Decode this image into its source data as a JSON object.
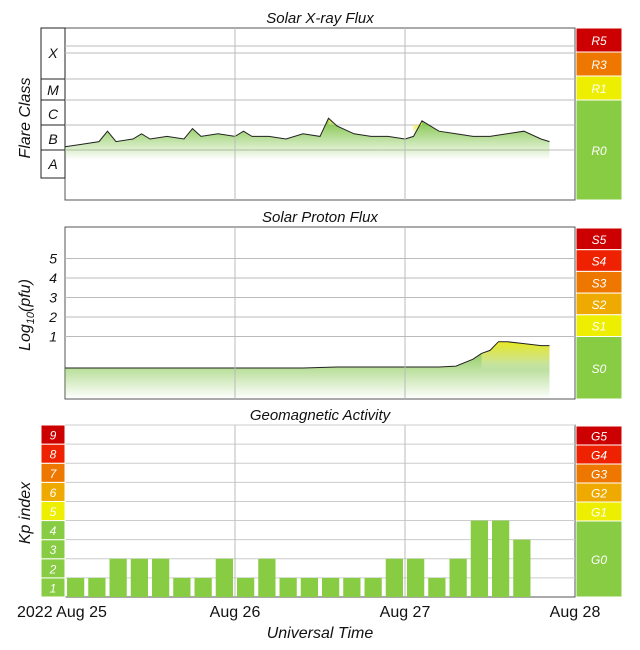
{
  "chart_data": [
    {
      "type": "area",
      "title": "Solar X-ray Flux",
      "ylabel": "Flare Class",
      "y_classes": [
        "X",
        "M",
        "C",
        "B",
        "A"
      ],
      "scale_levels": [
        "R5",
        "R3",
        "R1",
        "R0"
      ],
      "scale_colors": [
        "#cc0000",
        "#ee7700",
        "#eeee00",
        "#88cc44"
      ],
      "x_range_days": [
        0,
        3
      ],
      "series": [
        {
          "name": "X-ray",
          "x_days": [
            0.0,
            0.1,
            0.2,
            0.25,
            0.3,
            0.4,
            0.45,
            0.5,
            0.6,
            0.7,
            0.75,
            0.8,
            0.9,
            1.0,
            1.05,
            1.1,
            1.2,
            1.3,
            1.4,
            1.5,
            1.55,
            1.6,
            1.7,
            1.8,
            1.9,
            2.0,
            2.05,
            2.1,
            2.2,
            2.3,
            2.4,
            2.5,
            2.6,
            2.7,
            2.8,
            2.85
          ],
          "levels": [
            2.2,
            2.3,
            2.4,
            2.8,
            2.4,
            2.5,
            2.7,
            2.5,
            2.6,
            2.5,
            2.9,
            2.6,
            2.7,
            2.6,
            2.8,
            2.6,
            2.6,
            2.5,
            2.7,
            2.6,
            3.3,
            3.0,
            2.7,
            2.6,
            2.6,
            2.5,
            2.6,
            3.2,
            2.8,
            2.7,
            2.6,
            2.6,
            2.7,
            2.8,
            2.5,
            2.4
          ]
        }
      ]
    },
    {
      "type": "area",
      "title": "Solar Proton Flux",
      "ylabel": "Log10(pfu)",
      "yticks": [
        "1",
        "2",
        "3",
        "4",
        "5"
      ],
      "scale_levels": [
        "S5",
        "S4",
        "S3",
        "S2",
        "S1",
        "S0"
      ],
      "scale_colors": [
        "#cc0000",
        "#ee2200",
        "#ee7700",
        "#eeaa00",
        "#eeee00",
        "#88cc44"
      ],
      "series": [
        {
          "name": "Proton",
          "x_days": [
            0.0,
            0.2,
            0.4,
            0.6,
            0.8,
            1.0,
            1.2,
            1.4,
            1.6,
            1.8,
            2.0,
            2.2,
            2.3,
            2.4,
            2.45,
            2.5,
            2.55,
            2.6,
            2.7,
            2.8,
            2.85
          ],
          "log_pfu": [
            0.0,
            0.0,
            0.0,
            0.0,
            0.0,
            0.0,
            0.0,
            0.0,
            0.05,
            0.05,
            0.05,
            0.05,
            0.1,
            0.45,
            0.75,
            0.9,
            1.35,
            1.35,
            1.25,
            1.15,
            1.15
          ]
        }
      ]
    },
    {
      "type": "bar",
      "title": "Geomagnetic Activity",
      "ylabel": "Kp index",
      "yticks": [
        "1",
        "2",
        "3",
        "4",
        "5",
        "6",
        "7",
        "8",
        "9"
      ],
      "scale_levels": [
        "G5",
        "G4",
        "G3",
        "G2",
        "G1",
        "G0"
      ],
      "scale_colors": [
        "#cc0000",
        "#ee2200",
        "#ee7700",
        "#eeaa00",
        "#eeee00",
        "#88cc44"
      ],
      "values": [
        1,
        1,
        2,
        2,
        2,
        1,
        1,
        2,
        1,
        2,
        1,
        1,
        1,
        1,
        1,
        2,
        2,
        1,
        2,
        4,
        4,
        3
      ],
      "bar_interval_hours": 3
    }
  ],
  "x_axis": {
    "date_labels": [
      "2022 Aug 25",
      "Aug 26",
      "Aug 27",
      "Aug 28"
    ],
    "label": "Universal Time"
  }
}
